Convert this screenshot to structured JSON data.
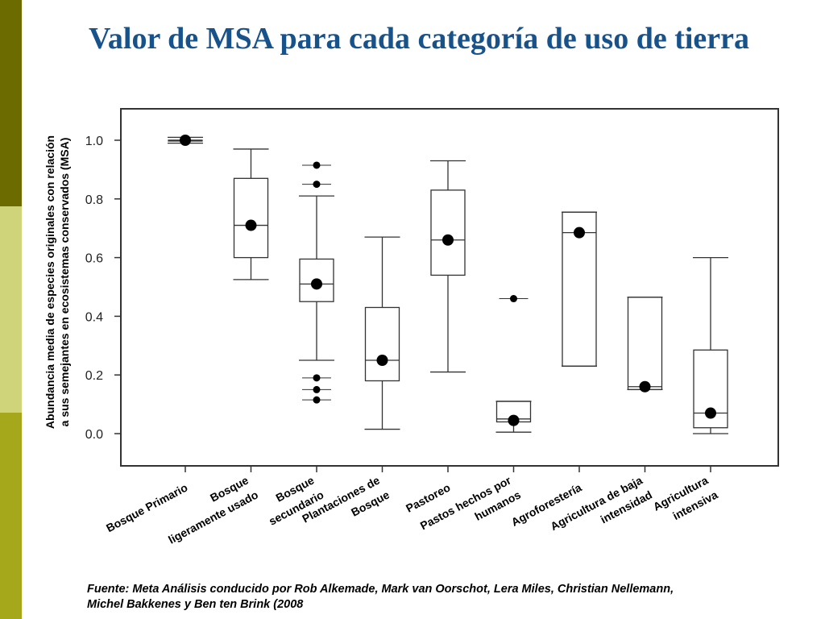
{
  "slide": {
    "title": "Valor de MSA para cada categoría de uso de tierra",
    "source_line1": "Fuente: Meta Análisis conducido por Rob Alkemade, Mark van Oorschot, Lera Miles, Christian Nellemann,",
    "source_line2": "Michel Bakkenes y Ben ten Brink (2008"
  },
  "colors": {
    "side_dark": "#6b6b00",
    "side_light": "#cfd37a",
    "side_mid": "#a5a81a",
    "title": "#17528a"
  },
  "chart_data": {
    "type": "boxplot",
    "title": "",
    "ylabel_lines": [
      "Abundancia media de especies originales con relación",
      "a sus semejantes en ecosistemas conservados (MSA)"
    ],
    "xlabel": "",
    "ylim": [
      -0.1,
      1.1
    ],
    "yticks": [
      0.0,
      0.2,
      0.4,
      0.6,
      0.8,
      1.0
    ],
    "ytick_labels": [
      "0.0",
      "0.2",
      "0.4",
      "0.6",
      "0.8",
      "1.0"
    ],
    "grid": false,
    "categories": [
      {
        "label_lines": [
          "Bosque Primario"
        ],
        "whisker_low": 0.99,
        "q1": 1.0,
        "median": 1.0,
        "q3": 1.0,
        "whisker_high": 1.01,
        "mean": 1.0,
        "outliers": []
      },
      {
        "label_lines": [
          "Bosque",
          "ligeramente usado"
        ],
        "whisker_low": 0.525,
        "q1": 0.6,
        "median": 0.71,
        "q3": 0.87,
        "whisker_high": 0.97,
        "mean": 0.71,
        "outliers": []
      },
      {
        "label_lines": [
          "Bosque",
          "secundario"
        ],
        "whisker_low": 0.25,
        "q1": 0.45,
        "median": 0.51,
        "q3": 0.595,
        "whisker_high": 0.81,
        "mean": 0.51,
        "outliers": [
          0.915,
          0.85,
          0.19,
          0.15,
          0.115
        ]
      },
      {
        "label_lines": [
          "Plantaciones de",
          "Bosque"
        ],
        "whisker_low": 0.015,
        "q1": 0.18,
        "median": 0.25,
        "q3": 0.43,
        "whisker_high": 0.67,
        "mean": 0.25,
        "outliers": []
      },
      {
        "label_lines": [
          "Pastoreo"
        ],
        "whisker_low": 0.21,
        "q1": 0.54,
        "median": 0.66,
        "q3": 0.83,
        "whisker_high": 0.93,
        "mean": 0.66,
        "outliers": []
      },
      {
        "label_lines": [
          "Pastos hechos por",
          "humanos"
        ],
        "whisker_low": 0.005,
        "q1": 0.04,
        "median": 0.05,
        "q3": 0.11,
        "whisker_high": 0.11,
        "mean": 0.045,
        "outliers": [
          0.46
        ]
      },
      {
        "label_lines": [
          "Agroforestería"
        ],
        "whisker_low": 0.23,
        "q1": 0.23,
        "median": 0.685,
        "q3": 0.755,
        "whisker_high": 0.755,
        "mean": 0.685,
        "outliers": []
      },
      {
        "label_lines": [
          "Agricultura de baja",
          "intensidad"
        ],
        "whisker_low": 0.15,
        "q1": 0.15,
        "median": 0.16,
        "q3": 0.465,
        "whisker_high": 0.465,
        "mean": 0.16,
        "outliers": []
      },
      {
        "label_lines": [
          "Agricultura",
          "intensiva"
        ],
        "whisker_low": 0.0,
        "q1": 0.02,
        "median": 0.07,
        "q3": 0.285,
        "whisker_high": 0.6,
        "mean": 0.07,
        "outliers": []
      }
    ]
  }
}
